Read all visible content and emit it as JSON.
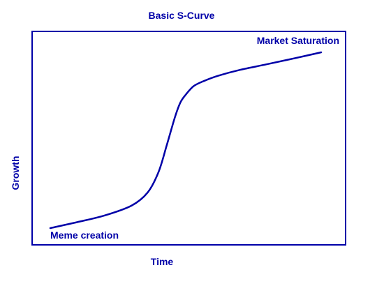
{
  "colors": {
    "accent": "#0000a8",
    "background": "#ffffff"
  },
  "chart_data": {
    "type": "line",
    "title": "Basic S-Curve",
    "xlabel": "Time",
    "ylabel": "Growth",
    "grid": false,
    "ticks": false,
    "xlim": [
      0,
      100
    ],
    "ylim": [
      0,
      100
    ],
    "series": [
      {
        "name": "",
        "x": [
          0,
          10,
          20,
          30,
          36,
          40,
          43,
          46,
          48,
          50,
          53,
          57,
          62,
          70,
          80,
          90,
          100
        ],
        "y": [
          0,
          3.4,
          7.1,
          12.7,
          20.2,
          31.8,
          46.8,
          62.5,
          70.8,
          75.3,
          80.2,
          83.2,
          86.0,
          89.3,
          92.5,
          95.8,
          99.2
        ]
      }
    ],
    "annotations": [
      {
        "text": "Meme creation",
        "x": 0,
        "y": -4
      },
      {
        "text": "Market Saturation",
        "x": 90,
        "y": 104
      }
    ]
  }
}
